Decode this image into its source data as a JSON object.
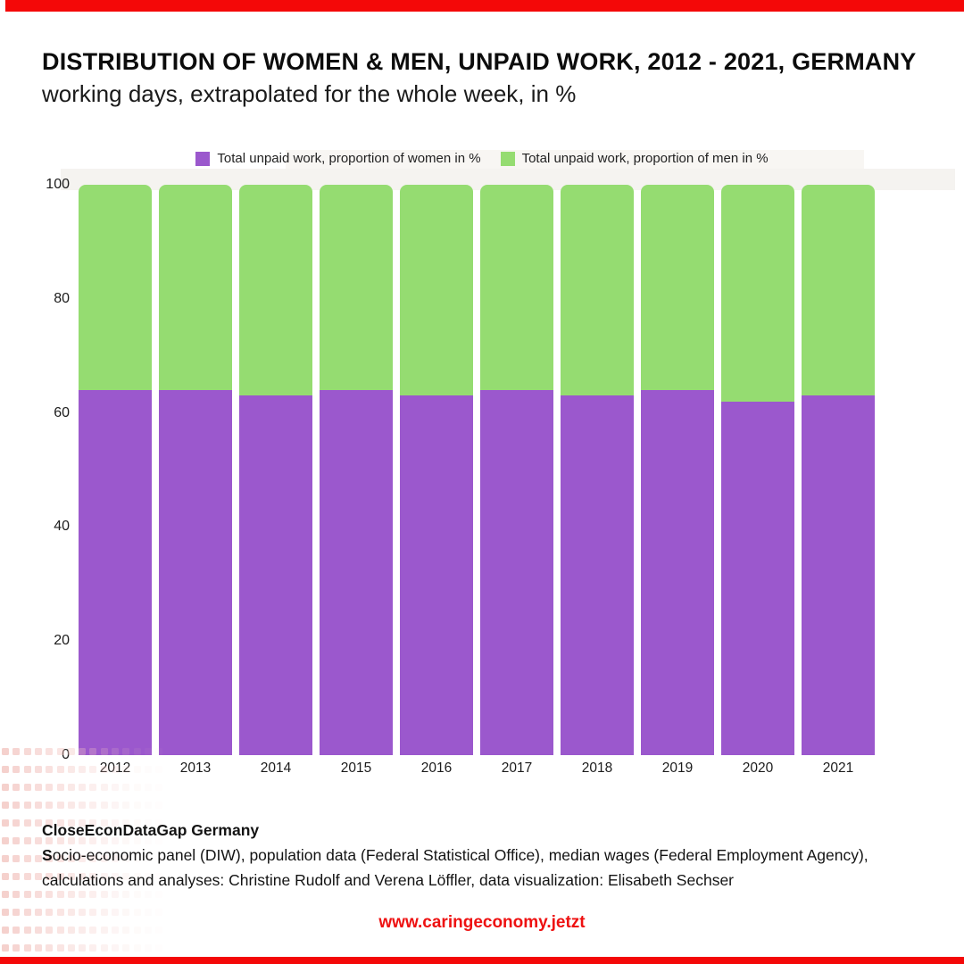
{
  "header": {
    "title": "DISTRIBUTION OF WOMEN & MEN, UNPAID WORK, 2012 - 2021, GERMANY",
    "subtitle": "working days, extrapolated for the whole week, in %"
  },
  "legend": [
    {
      "label": "Total unpaid work, proportion of women in %",
      "color": "#9b58cd"
    },
    {
      "label": "Total unpaid work, proportion of men in %",
      "color": "#95dc71"
    }
  ],
  "chart_data": {
    "type": "bar",
    "stacked": true,
    "title": "DISTRIBUTION OF WOMEN & MEN, UNPAID WORK, 2012 - 2021, GERMANY",
    "subtitle": "working days, extrapolated for the whole week, in %",
    "categories": [
      "2012",
      "2013",
      "2014",
      "2015",
      "2016",
      "2017",
      "2018",
      "2019",
      "2020",
      "2021"
    ],
    "series": [
      {
        "name": "Total unpaid work, proportion of women in %",
        "color": "#9b58cd",
        "values": [
          64,
          64,
          63,
          64,
          63,
          64,
          63,
          64,
          62,
          63
        ]
      },
      {
        "name": "Total unpaid work, proportion of men in %",
        "color": "#95dc71",
        "values": [
          36,
          36,
          37,
          36,
          37,
          36,
          37,
          36,
          38,
          37
        ]
      }
    ],
    "xlabel": "",
    "ylabel": "",
    "ylim": [
      0,
      100
    ],
    "yticks": [
      0,
      20,
      40,
      60,
      80,
      100
    ],
    "grid": false,
    "legend_position": "top"
  },
  "footer": {
    "heading": "CloseEconDataGap Germany",
    "source_bold_prefix": "S",
    "source_rest": "ocio-economic panel (DIW), population data (Federal Statistical Office), median wages (Federal Employment Agency),",
    "credits": "calculations and analyses: Christine Rudolf and Verena Löffler, data visualization: Elisabeth Sechser",
    "url": "www.caringeconomy.jetzt"
  },
  "colors": {
    "accent_red": "#f40808",
    "url_red": "#ee1111",
    "women_purple": "#9b58cd",
    "men_green": "#95dc71",
    "band_gray": "#f5f3f0",
    "legend_box_gray": "#f8f6f3",
    "dot_pink": "#f3c6c1"
  }
}
